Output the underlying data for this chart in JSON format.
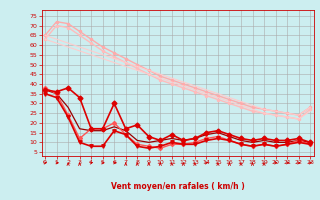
{
  "bg_color": "#cceef0",
  "grid_color": "#aaaaaa",
  "xlabel": "Vent moyen/en rafales ( km/h )",
  "xlabel_color": "#cc0000",
  "tick_color": "#cc0000",
  "ylim": [
    3,
    78
  ],
  "xlim": [
    -0.3,
    23.3
  ],
  "yticks": [
    5,
    10,
    15,
    20,
    25,
    30,
    35,
    40,
    45,
    50,
    55,
    60,
    65,
    70,
    75
  ],
  "xticks": [
    0,
    1,
    2,
    3,
    4,
    5,
    6,
    7,
    8,
    9,
    10,
    11,
    12,
    13,
    14,
    15,
    16,
    17,
    18,
    19,
    20,
    21,
    22,
    23
  ],
  "lines": [
    {
      "x": [
        0,
        1,
        2,
        3,
        4,
        5,
        6,
        7,
        8,
        9,
        10,
        11,
        12,
        13,
        14,
        15,
        16,
        17,
        18,
        19,
        20,
        21,
        22,
        23
      ],
      "y": [
        65,
        72,
        71,
        67,
        63,
        59,
        56,
        53,
        50,
        47,
        44,
        42,
        40,
        38,
        36,
        34,
        32,
        30,
        28,
        27,
        26,
        25,
        24,
        28
      ],
      "color": "#ffaaaa",
      "lw": 1.0,
      "marker": "o",
      "ms": 1.5,
      "zorder": 2
    },
    {
      "x": [
        0,
        1,
        2,
        3,
        4,
        5,
        6,
        7,
        8,
        9,
        10,
        11,
        12,
        13,
        14,
        15,
        16,
        17,
        18,
        19,
        20,
        21,
        22,
        23
      ],
      "y": [
        63,
        70,
        69,
        65,
        61,
        57,
        54,
        51,
        48,
        45,
        42,
        40,
        38,
        36,
        34,
        32,
        30,
        28,
        26,
        25,
        24,
        23,
        22,
        27
      ],
      "color": "#ffbbbb",
      "lw": 1.0,
      "marker": "o",
      "ms": 1.5,
      "zorder": 2
    },
    {
      "x": [
        0,
        1,
        2,
        3,
        4,
        5,
        6,
        7,
        8,
        9,
        10,
        11,
        12,
        13,
        14,
        15,
        16,
        17,
        18,
        19,
        20,
        21,
        22,
        23
      ],
      "y": [
        65,
        63,
        61,
        59,
        57,
        55,
        53,
        51,
        49,
        47,
        45,
        43,
        41,
        39,
        37,
        35,
        33,
        31,
        29,
        27,
        26,
        25,
        24,
        28
      ],
      "color": "#ffcccc",
      "lw": 0.8,
      "marker": null,
      "ms": 0,
      "zorder": 2
    },
    {
      "x": [
        0,
        1,
        2,
        3,
        4,
        5,
        6,
        7,
        8,
        9,
        10,
        11,
        12,
        13,
        14,
        15,
        16,
        17,
        18,
        19,
        20,
        21,
        22,
        23
      ],
      "y": [
        63,
        61,
        59,
        57,
        55,
        53,
        51,
        49,
        47,
        45,
        43,
        41,
        39,
        37,
        35,
        33,
        31,
        29,
        27,
        25,
        24,
        23,
        22,
        26
      ],
      "color": "#ffcccc",
      "lw": 0.8,
      "marker": null,
      "ms": 0,
      "zorder": 2
    },
    {
      "x": [
        0,
        1,
        2,
        3,
        4,
        5,
        6,
        7,
        8,
        9,
        10,
        11,
        12,
        13,
        14,
        15,
        16,
        17,
        18,
        19,
        20,
        21,
        22,
        23
      ],
      "y": [
        37,
        36,
        38,
        33,
        17,
        17,
        30,
        17,
        19,
        13,
        11,
        14,
        11,
        12,
        15,
        16,
        14,
        12,
        11,
        12,
        11,
        11,
        12,
        10
      ],
      "color": "#dd0000",
      "lw": 1.2,
      "marker": "D",
      "ms": 2.5,
      "zorder": 4
    },
    {
      "x": [
        0,
        1,
        2,
        3,
        4,
        5,
        6,
        7,
        8,
        9,
        10,
        11,
        12,
        13,
        14,
        15,
        16,
        17,
        18,
        19,
        20,
        21,
        22,
        23
      ],
      "y": [
        35,
        33,
        23,
        10,
        8,
        8,
        16,
        14,
        8,
        7,
        8,
        10,
        9,
        9,
        11,
        12,
        11,
        9,
        8,
        9,
        8,
        9,
        10,
        9
      ],
      "color": "#dd0000",
      "lw": 1.2,
      "marker": "v",
      "ms": 2.5,
      "zorder": 4
    },
    {
      "x": [
        0,
        1,
        2,
        3,
        4,
        5,
        6,
        7,
        8,
        9,
        10,
        11,
        12,
        13,
        14,
        15,
        16,
        17,
        18,
        19,
        20,
        21,
        22,
        23
      ],
      "y": [
        37,
        35,
        28,
        17,
        16,
        16,
        18,
        16,
        11,
        10,
        11,
        12,
        11,
        12,
        14,
        15,
        13,
        11,
        10,
        11,
        10,
        10,
        11,
        10
      ],
      "color": "#990000",
      "lw": 0.9,
      "marker": null,
      "ms": 0,
      "zorder": 3
    },
    {
      "x": [
        0,
        1,
        2,
        3,
        4,
        5,
        6,
        7,
        8,
        9,
        10,
        11,
        12,
        13,
        14,
        15,
        16,
        17,
        18,
        19,
        20,
        21,
        22,
        23
      ],
      "y": [
        38,
        35,
        24,
        12,
        17,
        17,
        20,
        14,
        9,
        8,
        7,
        9,
        9,
        10,
        12,
        13,
        11,
        9,
        8,
        9,
        8,
        9,
        11,
        9
      ],
      "color": "#ff5555",
      "lw": 1.0,
      "marker": "D",
      "ms": 2.0,
      "zorder": 3
    }
  ],
  "arrow_angles": [
    45,
    60,
    0,
    0,
    45,
    45,
    60,
    0,
    0,
    0,
    0,
    0,
    0,
    0,
    45,
    0,
    0,
    0,
    0,
    0,
    45,
    60,
    45,
    45
  ]
}
